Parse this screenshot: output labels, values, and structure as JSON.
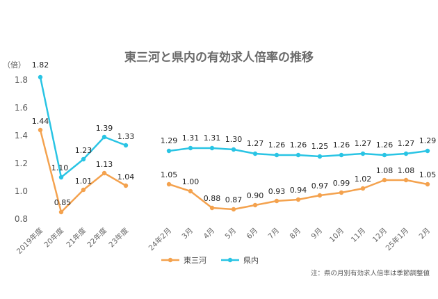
{
  "chart_data": {
    "type": "line",
    "title": "東三河と県内の有効求人倍率の推移",
    "ylabel": "（倍）",
    "ylim": [
      0.8,
      1.9
    ],
    "yticks": [
      "1.8",
      "1.6",
      "1.4",
      "1.2",
      "1.0",
      "0.8"
    ],
    "grid": false,
    "legend_position": "bottom-center",
    "note": "注：県の月別有効求人倍率は季節調整値",
    "groups": [
      {
        "categories": [
          "2019年度",
          "20年度",
          "21年度",
          "22年度",
          "23年度"
        ],
        "series": [
          {
            "name": "東三河",
            "color": "#F4A24E",
            "values": [
              1.44,
              0.85,
              1.01,
              1.13,
              1.04
            ]
          },
          {
            "name": "県内",
            "color": "#29C4E4",
            "values": [
              1.82,
              1.1,
              1.23,
              1.39,
              1.33
            ]
          }
        ]
      },
      {
        "categories": [
          "24年2月",
          "3月",
          "4月",
          "5月",
          "6月",
          "7月",
          "8月",
          "9月",
          "10月",
          "11月",
          "12月",
          "25年1月",
          "2月"
        ],
        "series": [
          {
            "name": "東三河",
            "color": "#F4A24E",
            "values": [
              1.05,
              1.0,
              0.88,
              0.87,
              0.9,
              0.93,
              0.94,
              0.97,
              0.99,
              1.02,
              1.08,
              1.08,
              1.05
            ]
          },
          {
            "name": "県内",
            "color": "#29C4E4",
            "values": [
              1.29,
              1.31,
              1.31,
              1.3,
              1.27,
              1.26,
              1.26,
              1.25,
              1.26,
              1.27,
              1.26,
              1.27,
              1.29
            ]
          }
        ]
      }
    ],
    "legend": [
      {
        "name": "東三河",
        "color": "#F4A24E"
      },
      {
        "name": "県内",
        "color": "#29C4E4"
      }
    ]
  }
}
